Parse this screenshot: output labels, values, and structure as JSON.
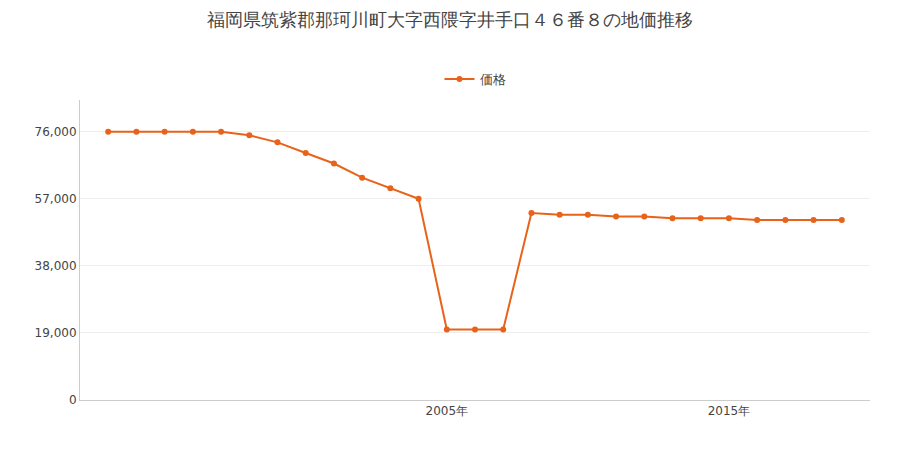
{
  "chart_data": {
    "type": "line",
    "title": "福岡県筑紫郡那珂川町大字西隈字井手口４６番８の地価推移",
    "x": [
      1993,
      1994,
      1995,
      1996,
      1997,
      1998,
      1999,
      2000,
      2001,
      2002,
      2003,
      2004,
      2005,
      2006,
      2007,
      2008,
      2009,
      2010,
      2011,
      2012,
      2013,
      2014,
      2015,
      2016,
      2017,
      2018,
      2019
    ],
    "series": [
      {
        "name": "価格",
        "color": "#e8621a",
        "marker": "circle",
        "values": [
          76000,
          76000,
          76000,
          76000,
          76000,
          75000,
          73000,
          70000,
          67000,
          63000,
          60000,
          57000,
          20000,
          20000,
          20000,
          53000,
          52500,
          52500,
          52000,
          52000,
          51500,
          51500,
          51500,
          51000,
          51000,
          51000,
          51000
        ]
      }
    ],
    "xlim": [
      1992,
      2020
    ],
    "xticks": [
      {
        "value": 2005,
        "label": "2005年"
      },
      {
        "value": 2015,
        "label": "2015年"
      }
    ],
    "ylim": [
      0,
      85000
    ],
    "yticks": [
      0,
      {
        "value": 19000,
        "label": "19,000"
      },
      {
        "value": 38000,
        "label": "38,000"
      },
      {
        "value": 57000,
        "label": "57,000"
      },
      {
        "value": 76000,
        "label": "76,000"
      }
    ],
    "grid": true,
    "legend": "top"
  }
}
